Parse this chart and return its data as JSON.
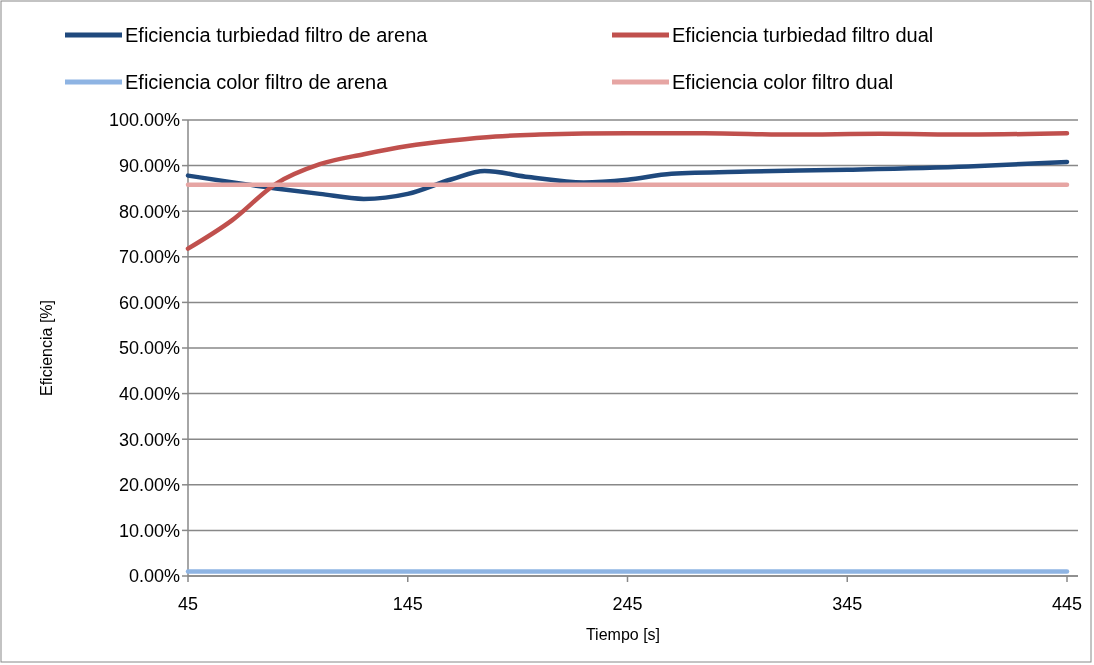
{
  "chart_data": {
    "type": "line",
    "xlabel": "Tiempo [s]",
    "ylabel": "Eficiencia [%]",
    "xlim": [
      45,
      450
    ],
    "xticks": [
      45,
      145,
      245,
      345,
      445
    ],
    "ylim": [
      0,
      100
    ],
    "yticks": [
      {
        "value": 0,
        "label": "0.00%"
      },
      {
        "value": 10,
        "label": "10.00%"
      },
      {
        "value": 20,
        "label": "20.00%"
      },
      {
        "value": 30,
        "label": "30.00%"
      },
      {
        "value": 40,
        "label": "40.00%"
      },
      {
        "value": 50,
        "label": "50.00%"
      },
      {
        "value": 60,
        "label": "60.00%"
      },
      {
        "value": 70,
        "label": "70.00%"
      },
      {
        "value": 80,
        "label": "80.00%"
      },
      {
        "value": 90,
        "label": "90.00%"
      },
      {
        "value": 100,
        "label": "100.00%"
      }
    ],
    "grid": "y",
    "legend": "top",
    "marker": "none",
    "line_style": "solid",
    "series": [
      {
        "name": "Eficiencia turbiedad filtro de arena",
        "color": "#1f497d",
        "x": [
          45,
          85,
          105,
          125,
          145,
          165,
          180,
          200,
          225,
          245,
          265,
          300,
          345,
          400,
          445
        ],
        "values": [
          87.8,
          85.0,
          83.8,
          82.7,
          83.8,
          87.0,
          88.8,
          87.5,
          86.3,
          86.9,
          88.2,
          88.7,
          89.1,
          89.8,
          90.8
        ]
      },
      {
        "name": "Eficiencia turbiedad filtro dual",
        "color": "#c0504d",
        "x": [
          45,
          65,
          85,
          105,
          125,
          145,
          165,
          185,
          205,
          245,
          280,
          320,
          360,
          400,
          445
        ],
        "values": [
          71.8,
          78,
          86,
          90.3,
          92.5,
          94.3,
          95.5,
          96.4,
          96.8,
          97.1,
          97.1,
          96.8,
          97.0,
          96.8,
          97.1
        ]
      },
      {
        "name": "Eficiencia color filtro de arena",
        "color": "#8eb4e3",
        "x": [
          45,
          445
        ],
        "values": [
          1.0,
          1.0
        ]
      },
      {
        "name": "Eficiencia color filtro dual",
        "color": "#e6a5a3",
        "x": [
          45,
          445
        ],
        "values": [
          85.8,
          85.8
        ]
      }
    ]
  }
}
